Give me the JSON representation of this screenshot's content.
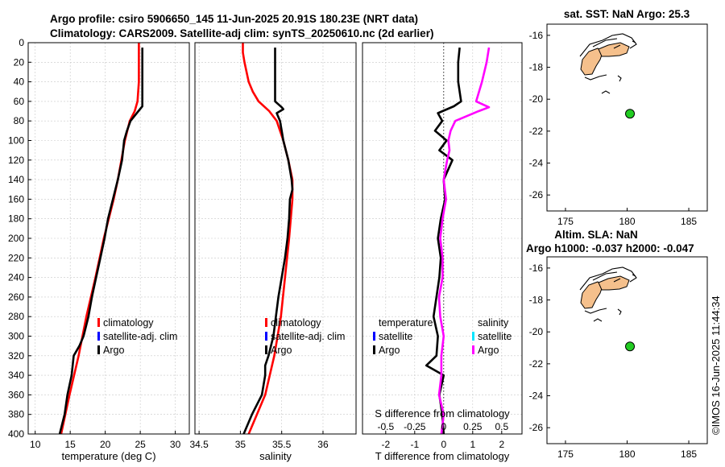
{
  "figure": {
    "title_line1": "Argo profile: csiro 5906650_145 11-Jun-2025 20.91S 180.23E (NRT data)",
    "title_line2": "Climatology: CARS2009. Satellite-adj clim: synTS_20250610.nc (2d earlier)",
    "watermark": "©IMOS 16-Jun-2025 11:44:34"
  },
  "colors": {
    "climatology": "#ff0000",
    "satellite": "#0000ff",
    "argo": "#000000",
    "argo_salinity_diff": "#ff00ff",
    "satellite_salinity": "#00e5ff",
    "float_marker": "#22cc22",
    "land": "#f5c08c"
  },
  "chart_data": [
    {
      "id": "temperature",
      "type": "line",
      "xlabel": "temperature (deg C)",
      "ylabel": "",
      "xlim": [
        9,
        32
      ],
      "ylim": [
        400,
        0
      ],
      "xticks": [
        10,
        15,
        20,
        25,
        30
      ],
      "yticks": [
        0,
        20,
        40,
        60,
        80,
        100,
        120,
        140,
        160,
        180,
        200,
        220,
        240,
        260,
        280,
        300,
        320,
        340,
        360,
        380,
        400
      ],
      "legend": [
        "climatology",
        "satellite-adj. clim",
        "Argo"
      ],
      "series": [
        {
          "name": "climatology",
          "color": "#ff0000",
          "depth": [
            0,
            20,
            40,
            60,
            70,
            80,
            100,
            120,
            140,
            160,
            200,
            240,
            280,
            320,
            360,
            400
          ],
          "values": [
            24.8,
            24.8,
            24.8,
            24.6,
            24.2,
            23.5,
            22.8,
            22.3,
            21.8,
            21.2,
            19.8,
            18.6,
            17.3,
            16.2,
            14.9,
            13.7
          ]
        },
        {
          "name": "Argo",
          "color": "#000000",
          "depth": [
            5,
            20,
            40,
            55,
            65,
            72,
            80,
            90,
            100,
            120,
            140,
            160,
            180,
            200,
            220,
            240,
            260,
            280,
            300,
            310,
            320,
            340,
            360,
            380,
            400
          ],
          "values": [
            25.3,
            25.3,
            25.3,
            25.3,
            25.3,
            24.5,
            23.6,
            23.1,
            22.7,
            22.4,
            21.8,
            21.1,
            20.4,
            19.9,
            19.3,
            18.7,
            18.1,
            17.6,
            16.9,
            16.3,
            15.5,
            15.2,
            14.6,
            14.2,
            13.5
          ]
        }
      ]
    },
    {
      "id": "salinity",
      "type": "line",
      "xlabel": "salinity",
      "ylabel": "",
      "xlim": [
        34.45,
        36.4
      ],
      "ylim": [
        400,
        0
      ],
      "xticks": [
        34.5,
        35,
        35.5,
        36
      ],
      "xtick_labels": [
        "34.5",
        "35",
        "35.5",
        "36"
      ],
      "legend": [
        "climatology",
        "satellite-adj. clim",
        "Argo"
      ],
      "series": [
        {
          "name": "climatology",
          "color": "#ff0000",
          "depth": [
            0,
            10,
            20,
            40,
            50,
            60,
            70,
            80,
            100,
            120,
            140,
            160,
            200,
            240,
            280,
            320,
            360,
            400
          ],
          "values": [
            35.03,
            35.03,
            35.05,
            35.1,
            35.15,
            35.22,
            35.35,
            35.44,
            35.52,
            35.58,
            35.63,
            35.63,
            35.59,
            35.54,
            35.49,
            35.41,
            35.3,
            35.1
          ]
        },
        {
          "name": "Argo",
          "color": "#000000",
          "depth": [
            5,
            20,
            40,
            60,
            66,
            68,
            72,
            80,
            90,
            100,
            120,
            140,
            150,
            160,
            180,
            200,
            220,
            240,
            260,
            280,
            300,
            320,
            330,
            340,
            360,
            380,
            400
          ],
          "values": [
            35.42,
            35.42,
            35.42,
            35.42,
            35.5,
            35.52,
            35.44,
            35.48,
            35.5,
            35.52,
            35.58,
            35.62,
            35.63,
            35.6,
            35.59,
            35.57,
            35.54,
            35.5,
            35.46,
            35.43,
            35.4,
            35.34,
            35.3,
            35.3,
            35.26,
            35.14,
            35.04
          ]
        }
      ]
    },
    {
      "id": "difference",
      "type": "line",
      "xlabel": "T difference from climatology",
      "xlabel_top": "S difference from climatology",
      "xlim": [
        -2.8,
        2.7
      ],
      "ylim": [
        400,
        0
      ],
      "xticks": [
        -2,
        -1,
        0,
        1,
        2
      ],
      "xtick_labels": [
        "-2",
        "-1",
        "0",
        "1",
        "2"
      ],
      "s_xticks": [
        -0.5,
        -0.25,
        0,
        0.25,
        0.5
      ],
      "s_xtick_labels": [
        "-0.5",
        "-0.25",
        "0",
        "0.25",
        "0.5"
      ],
      "legend_temperature": [
        "temperature",
        "satellite",
        "Argo"
      ],
      "legend_salinity": [
        "salinity",
        "satellite",
        "Argo"
      ],
      "series": [
        {
          "name": "temperature difference (Argo)",
          "color": "#000000",
          "depth": [
            5,
            20,
            40,
            60,
            65,
            72,
            80,
            90,
            100,
            110,
            120,
            140,
            160,
            180,
            200,
            220,
            240,
            260,
            280,
            300,
            320,
            330,
            340,
            360,
            380,
            400
          ],
          "values": [
            0.55,
            0.5,
            0.5,
            0.6,
            0.35,
            -0.2,
            -0.05,
            -0.3,
            0.1,
            -0.15,
            0.3,
            0.0,
            0.05,
            -0.1,
            -0.2,
            -0.1,
            -0.15,
            -0.25,
            -0.35,
            -0.2,
            -0.25,
            -0.6,
            0.0,
            -0.15,
            -0.05,
            0.0
          ]
        },
        {
          "name": "salinity difference (Argo)",
          "color": "#ff00ff",
          "depth": [
            5,
            20,
            40,
            60,
            66,
            70,
            80,
            90,
            100,
            110,
            120,
            140,
            160,
            180,
            200,
            220,
            240,
            260,
            280,
            300,
            320,
            340,
            360,
            380,
            400
          ],
          "values": [
            0.39,
            0.37,
            0.33,
            0.28,
            0.39,
            0.3,
            0.1,
            0.06,
            0.04,
            0.05,
            0.03,
            0.0,
            0.02,
            -0.01,
            -0.03,
            -0.01,
            -0.01,
            -0.04,
            -0.03,
            0.0,
            -0.02,
            -0.02,
            -0.04,
            0.0,
            -0.02
          ]
        }
      ]
    },
    {
      "id": "map_sst",
      "type": "scatter",
      "title": "sat. SST: NaN Argo: 25.3",
      "xlim": [
        173.5,
        186.5
      ],
      "ylim": [
        -27,
        -15.3
      ],
      "xticks": [
        175,
        180,
        185
      ],
      "yticks": [
        -16,
        -18,
        -20,
        -22,
        -24,
        -26
      ],
      "point": {
        "lon": 180.23,
        "lat": -20.91
      }
    },
    {
      "id": "map_sla",
      "type": "scatter",
      "title": "Altim. SLA: NaN",
      "subtitle": "Argo h1000: -0.037 h2000: -0.047",
      "xlim": [
        173.5,
        186.5
      ],
      "ylim": [
        -27,
        -15.3
      ],
      "xticks": [
        175,
        180,
        185
      ],
      "yticks": [
        -16,
        -18,
        -20,
        -22,
        -24,
        -26
      ],
      "point": {
        "lon": 180.23,
        "lat": -20.91
      }
    }
  ]
}
